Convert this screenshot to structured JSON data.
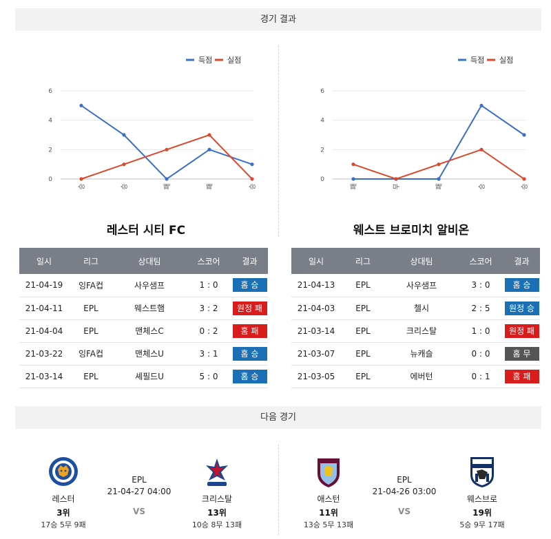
{
  "sections": {
    "results_title": "경기 결과",
    "next_title": "다음 경기"
  },
  "legend": {
    "scored": "득점",
    "conceded": "실점",
    "scored_color": "#3a6fc8",
    "conceded_color": "#d9482b"
  },
  "chart_data": [
    {
      "type": "line",
      "categories": [
        "승",
        "승",
        "패",
        "패",
        "승"
      ],
      "ylim": [
        0,
        6
      ],
      "yticks": [
        0,
        2,
        4,
        6
      ],
      "grid": true,
      "legend_position": "top-right",
      "series": [
        {
          "name": "득점",
          "values": [
            5,
            3,
            0,
            2,
            1
          ]
        },
        {
          "name": "실점",
          "values": [
            0,
            1,
            2,
            3,
            0
          ]
        }
      ]
    },
    {
      "type": "line",
      "categories": [
        "패",
        "무",
        "패",
        "승",
        "승"
      ],
      "ylim": [
        0,
        6
      ],
      "yticks": [
        0,
        2,
        4,
        6
      ],
      "grid": true,
      "legend_position": "top-right",
      "series": [
        {
          "name": "득점",
          "values": [
            0,
            0,
            0,
            5,
            3
          ]
        },
        {
          "name": "실점",
          "values": [
            1,
            0,
            1,
            2,
            0
          ]
        }
      ]
    }
  ],
  "teams": [
    {
      "title": "레스터 시티 FC",
      "headers": [
        "일시",
        "리그",
        "상대팀",
        "스코어",
        "결과"
      ],
      "rows": [
        {
          "date": "21-04-19",
          "league": "잉FA컵",
          "opponent": "사우샘프",
          "score": "1 : 0",
          "result": "홈 승",
          "type": "win"
        },
        {
          "date": "21-04-11",
          "league": "EPL",
          "opponent": "웨스트햄",
          "score": "3 : 2",
          "result": "원정 패",
          "type": "loss"
        },
        {
          "date": "21-04-04",
          "league": "EPL",
          "opponent": "맨체스C",
          "score": "0 : 2",
          "result": "홈 패",
          "type": "loss"
        },
        {
          "date": "21-03-22",
          "league": "잉FA컵",
          "opponent": "맨체스U",
          "score": "3 : 1",
          "result": "홈 승",
          "type": "win"
        },
        {
          "date": "21-03-14",
          "league": "EPL",
          "opponent": "셰필드U",
          "score": "5 : 0",
          "result": "홈 승",
          "type": "win"
        }
      ]
    },
    {
      "title": "웨스트 브로미치 알비온",
      "headers": [
        "일시",
        "리그",
        "상대팀",
        "스코어",
        "결과"
      ],
      "rows": [
        {
          "date": "21-04-13",
          "league": "EPL",
          "opponent": "사우샘프",
          "score": "3 : 0",
          "result": "홈 승",
          "type": "win"
        },
        {
          "date": "21-04-03",
          "league": "EPL",
          "opponent": "첼시",
          "score": "2 : 5",
          "result": "원정 승",
          "type": "win"
        },
        {
          "date": "21-03-14",
          "league": "EPL",
          "opponent": "크리스탈",
          "score": "1 : 0",
          "result": "원정 패",
          "type": "loss"
        },
        {
          "date": "21-03-07",
          "league": "EPL",
          "opponent": "뉴캐슬",
          "score": "0 : 0",
          "result": "홈 무",
          "type": "draw"
        },
        {
          "date": "21-03-05",
          "league": "EPL",
          "opponent": "에버턴",
          "score": "0 : 1",
          "result": "홈 패",
          "type": "loss"
        }
      ]
    }
  ],
  "next_matches": [
    {
      "league": "EPL",
      "datetime": "21-04-27 04:00",
      "vs": "VS",
      "home": {
        "name": "레스터",
        "rank": "3위",
        "record": "17승 5무 9패",
        "logo": "leicester-logo"
      },
      "away": {
        "name": "크리스탈",
        "rank": "13위",
        "record": "10승 8무 13패",
        "logo": "crystal-palace-logo"
      }
    },
    {
      "league": "EPL",
      "datetime": "21-04-26 03:00",
      "vs": "VS",
      "home": {
        "name": "애스턴",
        "rank": "11위",
        "record": "13승 5무 13패",
        "logo": "aston-villa-logo"
      },
      "away": {
        "name": "웨스브로",
        "rank": "19위",
        "record": "5승 9무 17패",
        "logo": "west-brom-logo"
      }
    }
  ]
}
